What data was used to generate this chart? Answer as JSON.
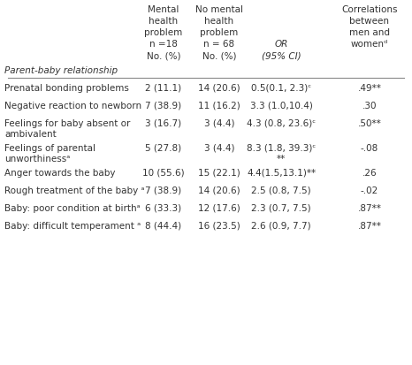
{
  "col_headers": [
    [
      "Mental",
      "health",
      "problem",
      "n =18",
      "No. (%)"
    ],
    [
      "No mental",
      "health",
      "problem",
      "n = 68",
      "No. (%)"
    ],
    [
      "",
      "",
      "",
      "OR",
      "(95% CI)"
    ],
    [
      "Correlations",
      "between",
      "men and",
      "womenᵈ",
      ""
    ]
  ],
  "rows": [
    {
      "label": "Prenatal bonding problems",
      "label2": "",
      "col1": "2 (11.1)",
      "col2": "14 (20.6)",
      "col3": "0.5(0.1, 2.3)ᶜ",
      "col4": ".49**"
    },
    {
      "label": "Negative reaction to newborn",
      "label2": "",
      "col1": "7 (38.9)",
      "col2": "11 (16.2)",
      "col3": "3.3 (1.0,10.4)",
      "col4": ".30"
    },
    {
      "label": "Feelings for baby absent or",
      "label2": "ambivalent",
      "col1": "3 (16.7)",
      "col2": "3 (4.4)",
      "col3": "4.3 (0.8, 23.6)ᶜ",
      "col4": ".50**"
    },
    {
      "label": "Feelings of parental",
      "label2": "unworthinessᵃ",
      "col1": "5 (27.8)",
      "col2": "3 (4.4)",
      "col3": "8.3 (1.8, 39.3)ᶜ\n**",
      "col4": "-.08"
    },
    {
      "label": "Anger towards the baby",
      "label2": "",
      "col1": "10 (55.6)",
      "col2": "15 (22.1)",
      "col3": "4.4(1.5,13.1)**",
      "col4": ".26"
    },
    {
      "label": "Rough treatment of the baby ᵃ",
      "label2": "",
      "col1": "7 (38.9)",
      "col2": "14 (20.6)",
      "col3": "2.5 (0.8, 7.5)",
      "col4": "-.02"
    },
    {
      "label": "Baby: poor condition at birthᵃ",
      "label2": "",
      "col1": "6 (33.3)",
      "col2": "12 (17.6)",
      "col3": "2.3 (0.7, 7.5)",
      "col4": ".87**"
    },
    {
      "label": "Baby: difficult temperament ᵃ",
      "label2": "",
      "col1": "8 (44.4)",
      "col2": "16 (23.5)",
      "col3": "2.6 (0.9, 7.7)",
      "col4": ".87**"
    }
  ],
  "section_label": "Parent-baby relationship",
  "background_color": "#ffffff",
  "text_color": "#333333",
  "font_size": 7.5,
  "header_font_size": 7.5
}
